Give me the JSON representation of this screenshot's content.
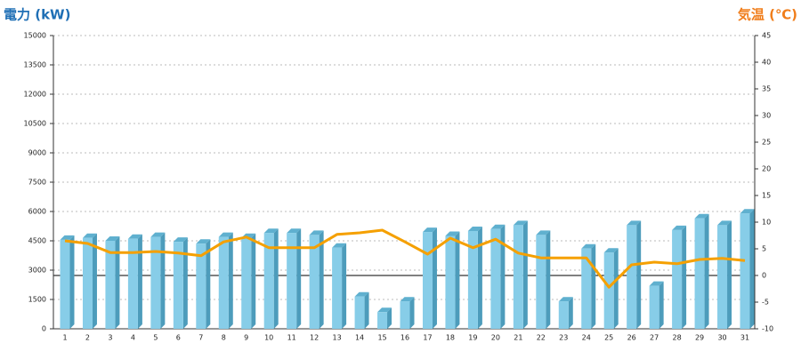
{
  "chart_data": {
    "type": "bar",
    "y_label": "電力 (kW)",
    "y2_label": "気温 (℃)",
    "categories": [
      "1",
      "2",
      "3",
      "4",
      "5",
      "6",
      "7",
      "8",
      "9",
      "10",
      "11",
      "12",
      "13",
      "14",
      "15",
      "16",
      "17",
      "18",
      "19",
      "20",
      "21",
      "22",
      "23",
      "24",
      "25",
      "26",
      "27",
      "28",
      "29",
      "30",
      "31"
    ],
    "series": [
      {
        "type": "bar",
        "axis": "y",
        "color": "#87cde8",
        "values": [
          4550,
          4650,
          4500,
          4600,
          4700,
          4450,
          4350,
          4700,
          4650,
          4900,
          4900,
          4800,
          4150,
          1650,
          850,
          1400,
          4950,
          4750,
          5000,
          5100,
          5300,
          4800,
          1400,
          4100,
          3900,
          5300,
          2200,
          5050,
          5650,
          5300,
          5900
        ]
      },
      {
        "type": "line",
        "axis": "y2",
        "color": "#f5a000",
        "values": [
          6.5,
          6,
          4.3,
          4.3,
          4.5,
          4.2,
          3.7,
          6.3,
          7.2,
          5.2,
          5.2,
          5.2,
          7.7,
          8,
          8.5,
          6.3,
          4,
          7,
          5.2,
          6.8,
          4.2,
          3.3,
          3.3,
          3.3,
          -2.2,
          2,
          2.5,
          2.2,
          3,
          3.2,
          2.8
        ]
      }
    ],
    "ylim": [
      0,
      15000
    ],
    "yticks": [
      0,
      1500,
      3000,
      4500,
      6000,
      7500,
      9000,
      10500,
      12000,
      13500,
      15000
    ],
    "y2lim": [
      -10,
      45
    ],
    "y2ticks": [
      -10,
      -5,
      0,
      5,
      10,
      15,
      20,
      25,
      30,
      35,
      40,
      45
    ],
    "grid": true
  }
}
